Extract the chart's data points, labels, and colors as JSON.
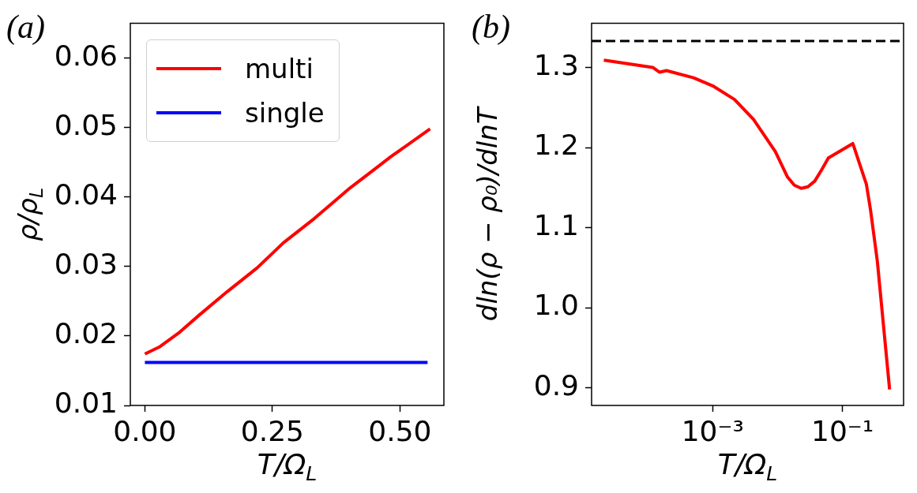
{
  "chart_data": [
    {
      "type": "line",
      "title": "(a)",
      "xlabel": "T/Ω$_{L}$",
      "ylabel": "ρ/ρ$_{L}$",
      "xlim": [
        -0.0285,
        0.586
      ],
      "ylim": [
        0.01,
        0.065
      ],
      "xticks": [
        {
          "value": 0,
          "label": "0.00"
        },
        {
          "value": 0.25,
          "label": "0.25"
        },
        {
          "value": 0.5,
          "label": "0.50"
        }
      ],
      "yticks": [
        0.01,
        0.02,
        0.03,
        0.04,
        0.05,
        0.06
      ],
      "legend": "top left",
      "series": [
        {
          "name": "multi",
          "color": "#ff0000",
          "x": [
            0,
            0.028,
            0.0657,
            0.108,
            0.1617,
            0.22,
            0.2714,
            0.332,
            0.402,
            0.45,
            0.482,
            0.559
          ],
          "values": [
            0.0174,
            0.0184,
            0.0204,
            0.0231,
            0.0264,
            0.0298,
            0.0334,
            0.0369,
            0.0413,
            0.044,
            0.0458,
            0.0498
          ]
        },
        {
          "name": "single",
          "color": "#0000ff",
          "x": [
            0,
            0.554
          ],
          "values": [
            0.0162,
            0.0162
          ]
        }
      ]
    },
    {
      "type": "line",
      "title": "(b)",
      "xlabel": "T/Ω$_{L}$",
      "ylabel": "dln(ρ − ρ₀)/dlnT",
      "log": "x",
      "xlim": [
        1.36e-05,
        0.875
      ],
      "ylim": [
        0.878,
        1.355
      ],
      "xticks": [
        {
          "value": 0.001,
          "label": "10⁻³"
        },
        {
          "value": 0.1,
          "label": "10⁻¹"
        }
      ],
      "yticks": [
        {
          "value": 0.9,
          "label": "0.9"
        },
        {
          "value": 1,
          "label": "1.0"
        },
        {
          "value": 1.1,
          "label": "1.1"
        },
        {
          "value": 1.2,
          "label": "1.2"
        },
        {
          "value": 1.3,
          "label": "1.3"
        }
      ],
      "ref_lines": [
        {
          "axis": "y",
          "value": 1.333,
          "color": "#000000",
          "line_style": "dashed"
        }
      ],
      "series": [
        {
          "color": "#ff0000",
          "x": [
            2.1e-05,
            0.000119,
            0.000152,
            0.000194,
            0.000508,
            0.001,
            0.00217,
            0.00426,
            0.00923,
            0.01426,
            0.0181,
            0.0231,
            0.0294,
            0.0374,
            0.0476,
            0.0607,
            0.1445,
            0.234,
            0.271,
            0.345,
            0.533
          ],
          "values": [
            1.309,
            1.3,
            1.294,
            1.296,
            1.287,
            1.277,
            1.26,
            1.235,
            1.195,
            1.163,
            1.153,
            1.149,
            1.151,
            1.158,
            1.172,
            1.187,
            1.205,
            1.154,
            1.122,
            1.058,
            0.898
          ]
        }
      ]
    }
  ]
}
